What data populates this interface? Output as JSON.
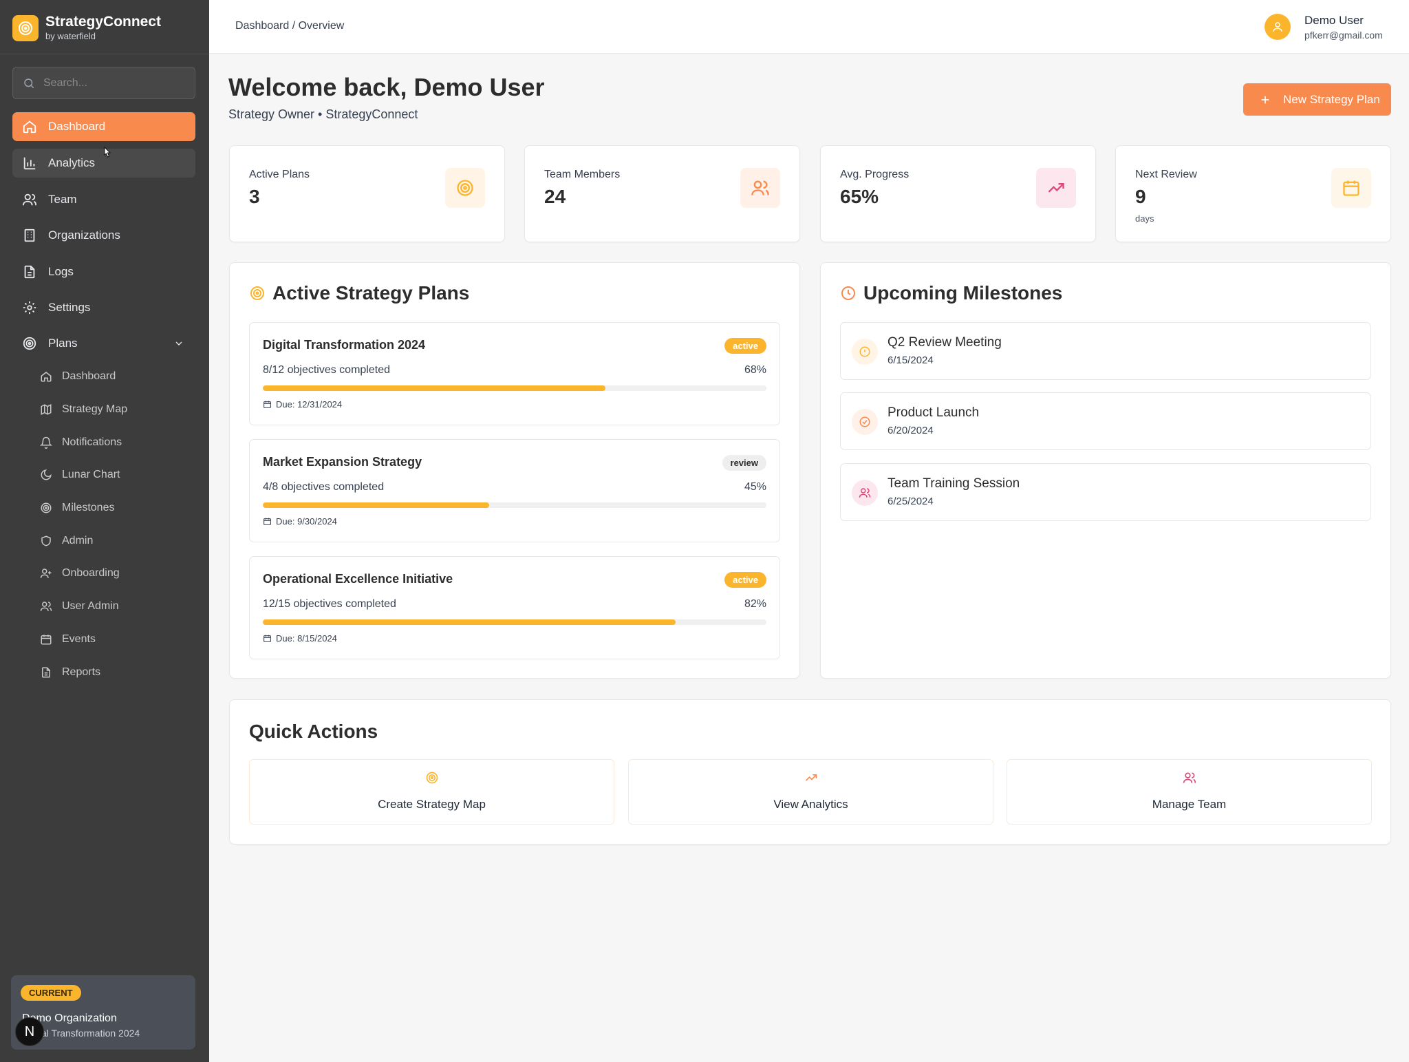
{
  "app": {
    "name": "StrategyConnect",
    "subtitle": "by waterfield",
    "accent": "#f98a4e",
    "brand_yellow": "#fbb52c"
  },
  "search": {
    "placeholder": "Search..."
  },
  "sidebar": {
    "items": [
      {
        "label": "Dashboard",
        "icon": "home-icon",
        "active": true
      },
      {
        "label": "Analytics",
        "icon": "bar-chart-icon"
      },
      {
        "label": "Team",
        "icon": "users-icon"
      },
      {
        "label": "Organizations",
        "icon": "building-icon"
      },
      {
        "label": "Logs",
        "icon": "file-text-icon"
      },
      {
        "label": "Settings",
        "icon": "gear-icon"
      },
      {
        "label": "Plans",
        "icon": "target-icon",
        "expanded": true
      }
    ],
    "plans_sub": [
      {
        "label": "Dashboard",
        "icon": "home-icon"
      },
      {
        "label": "Strategy Map",
        "icon": "map-icon"
      },
      {
        "label": "Notifications",
        "icon": "bell-icon"
      },
      {
        "label": "Lunar Chart",
        "icon": "moon-icon"
      },
      {
        "label": "Milestones",
        "icon": "target-icon"
      },
      {
        "label": "Admin",
        "icon": "shield-icon"
      },
      {
        "label": "Onboarding",
        "icon": "user-plus-icon"
      },
      {
        "label": "User Admin",
        "icon": "users-icon"
      },
      {
        "label": "Events",
        "icon": "calendar-icon"
      },
      {
        "label": "Reports",
        "icon": "file-text-icon"
      }
    ],
    "current": {
      "badge": "CURRENT",
      "org": "Demo Organization",
      "plan": "Digital Transformation 2024"
    },
    "n_badge": "N"
  },
  "topbar": {
    "breadcrumb": "Dashboard / Overview",
    "user_name": "Demo User",
    "user_email": "pfkerr@gmail.com"
  },
  "header": {
    "welcome": "Welcome back, Demo User",
    "role": "Strategy Owner • StrategyConnect",
    "new_plan_label": "New Strategy Plan"
  },
  "stats": [
    {
      "label": "Active Plans",
      "value": "3",
      "unit": "",
      "icon": "target-icon",
      "icon_bg": "#fff4e6",
      "icon_color": "#fbb52c"
    },
    {
      "label": "Team Members",
      "value": "24",
      "unit": "",
      "icon": "users-icon",
      "icon_bg": "#fff0e8",
      "icon_color": "#f98a4e"
    },
    {
      "label": "Avg. Progress",
      "value": "65%",
      "unit": "",
      "icon": "trending-up-icon",
      "icon_bg": "#fde7ee",
      "icon_color": "#e0457b"
    },
    {
      "label": "Next Review",
      "value": "9",
      "unit": "days",
      "icon": "calendar-icon",
      "icon_bg": "#fff6ea",
      "icon_color": "#fbb52c"
    }
  ],
  "plans_panel": {
    "title": "Active Strategy Plans",
    "plans": [
      {
        "name": "Digital Transformation 2024",
        "status": "active",
        "objectives": "8/12 objectives completed",
        "percent_label": "68%",
        "progress": 0.68,
        "due": "Due: 12/31/2024"
      },
      {
        "name": "Market Expansion Strategy",
        "status": "review",
        "objectives": "4/8 objectives completed",
        "percent_label": "45%",
        "progress": 0.45,
        "due": "Due: 9/30/2024"
      },
      {
        "name": "Operational Excellence Initiative",
        "status": "active",
        "objectives": "12/15 objectives completed",
        "percent_label": "82%",
        "progress": 0.82,
        "due": "Due: 8/15/2024"
      }
    ]
  },
  "milestones_panel": {
    "title": "Upcoming Milestones",
    "items": [
      {
        "title": "Q2 Review Meeting",
        "date": "6/15/2024",
        "icon": "alert-circle-icon"
      },
      {
        "title": "Product Launch",
        "date": "6/20/2024",
        "icon": "check-circle-icon"
      },
      {
        "title": "Team Training Session",
        "date": "6/25/2024",
        "icon": "users-icon"
      }
    ]
  },
  "quick_actions": {
    "title": "Quick Actions",
    "actions": [
      {
        "label": "Create Strategy Map",
        "icon": "target-icon"
      },
      {
        "label": "View Analytics",
        "icon": "trending-up-icon"
      },
      {
        "label": "Manage Team",
        "icon": "users-icon"
      }
    ]
  }
}
